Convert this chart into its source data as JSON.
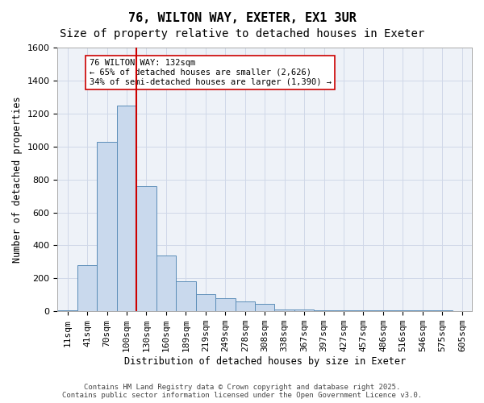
{
  "title_line1": "76, WILTON WAY, EXETER, EX1 3UR",
  "title_line2": "Size of property relative to detached houses in Exeter",
  "xlabel": "Distribution of detached houses by size in Exeter",
  "ylabel": "Number of detached properties",
  "bin_labels": [
    "11sqm",
    "41sqm",
    "70sqm",
    "100sqm",
    "130sqm",
    "160sqm",
    "189sqm",
    "219sqm",
    "249sqm",
    "278sqm",
    "308sqm",
    "338sqm",
    "367sqm",
    "397sqm",
    "427sqm",
    "457sqm",
    "486sqm",
    "516sqm",
    "546sqm",
    "575sqm",
    "605sqm"
  ],
  "bar_heights": [
    5,
    280,
    1030,
    1250,
    760,
    340,
    180,
    105,
    80,
    60,
    45,
    10,
    10,
    5,
    5,
    5,
    5,
    5,
    5,
    5,
    0
  ],
  "bar_color": "#c9d9ed",
  "bar_edge_color": "#5b8db8",
  "bar_width": 1.0,
  "vline_x": 3.5,
  "vline_color": "#cc0000",
  "annotation_text": "76 WILTON WAY: 132sqm\n← 65% of detached houses are smaller (2,626)\n34% of semi-detached houses are larger (1,390) →",
  "annotation_box_edge": "#cc0000",
  "ylim": [
    0,
    1600
  ],
  "yticks": [
    0,
    200,
    400,
    600,
    800,
    1000,
    1200,
    1400,
    1600
  ],
  "grid_color": "#d0d8e8",
  "background_color": "#eef2f8",
  "footer_text": "Contains HM Land Registry data © Crown copyright and database right 2025.\nContains public sector information licensed under the Open Government Licence v3.0.",
  "title_fontsize": 11,
  "subtitle_fontsize": 10,
  "annotation_fontsize": 7.5,
  "axis_label_fontsize": 8.5,
  "tick_fontsize": 8,
  "footer_fontsize": 6.5
}
